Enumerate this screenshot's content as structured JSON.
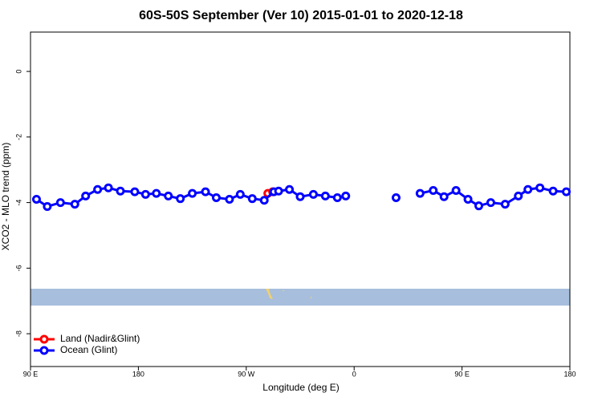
{
  "chart_data": {
    "type": "line",
    "title": "60S-50S September (Ver 10)   2015-01-01 to 2020-12-18",
    "x_label": "Longitude (deg E)",
    "y_label": "XCO2 - MLO trend (ppm)",
    "xlim": [
      90,
      540
    ],
    "ylim": [
      -9,
      1.2
    ],
    "xticks": [
      {
        "value": 90,
        "label": "90 E"
      },
      180,
      {
        "value": 270,
        "label": "90 W"
      },
      {
        "value": 360,
        "label": "0"
      },
      {
        "value": 450,
        "label": "90 E"
      },
      {
        "value": 540,
        "label": "180"
      }
    ],
    "yticks": [
      0,
      -2,
      -4,
      -6,
      -8
    ],
    "legend": "bottom-left",
    "series": [
      {
        "name": "Land (Nadir&Glint)",
        "color": "#ff0000",
        "x": [
          288,
          292
        ],
        "values": [
          -3.72,
          -3.67
        ]
      },
      {
        "name": "Ocean (Glint)",
        "color": "#0000ff",
        "x": [
          95,
          104,
          115,
          127,
          136,
          146,
          155,
          165,
          177,
          186,
          195,
          205,
          215,
          225,
          236,
          245,
          256,
          265,
          275,
          285,
          293,
          297,
          306,
          315,
          326,
          336,
          346,
          353,
          374,
          395,
          405,
          415,
          426,
          435,
          445,
          455,
          464,
          474,
          486,
          497,
          505,
          515,
          526,
          537
        ],
        "values": [
          -3.9,
          -4.12,
          -4.0,
          -4.05,
          -3.8,
          -3.6,
          -3.55,
          -3.65,
          -3.67,
          -3.75,
          -3.72,
          -3.8,
          -3.88,
          -3.72,
          -3.67,
          -3.85,
          -3.9,
          -3.75,
          -3.88,
          -3.93,
          -3.67,
          -3.65,
          -3.6,
          -3.82,
          -3.75,
          -3.8,
          -3.85,
          -3.8,
          null,
          -3.85,
          null,
          -3.72,
          -3.63,
          -3.82,
          -3.63,
          -3.9,
          -4.1,
          -4.0,
          -4.05,
          -3.8,
          -3.6,
          -3.55,
          -3.65,
          -3.67
        ]
      }
    ]
  }
}
